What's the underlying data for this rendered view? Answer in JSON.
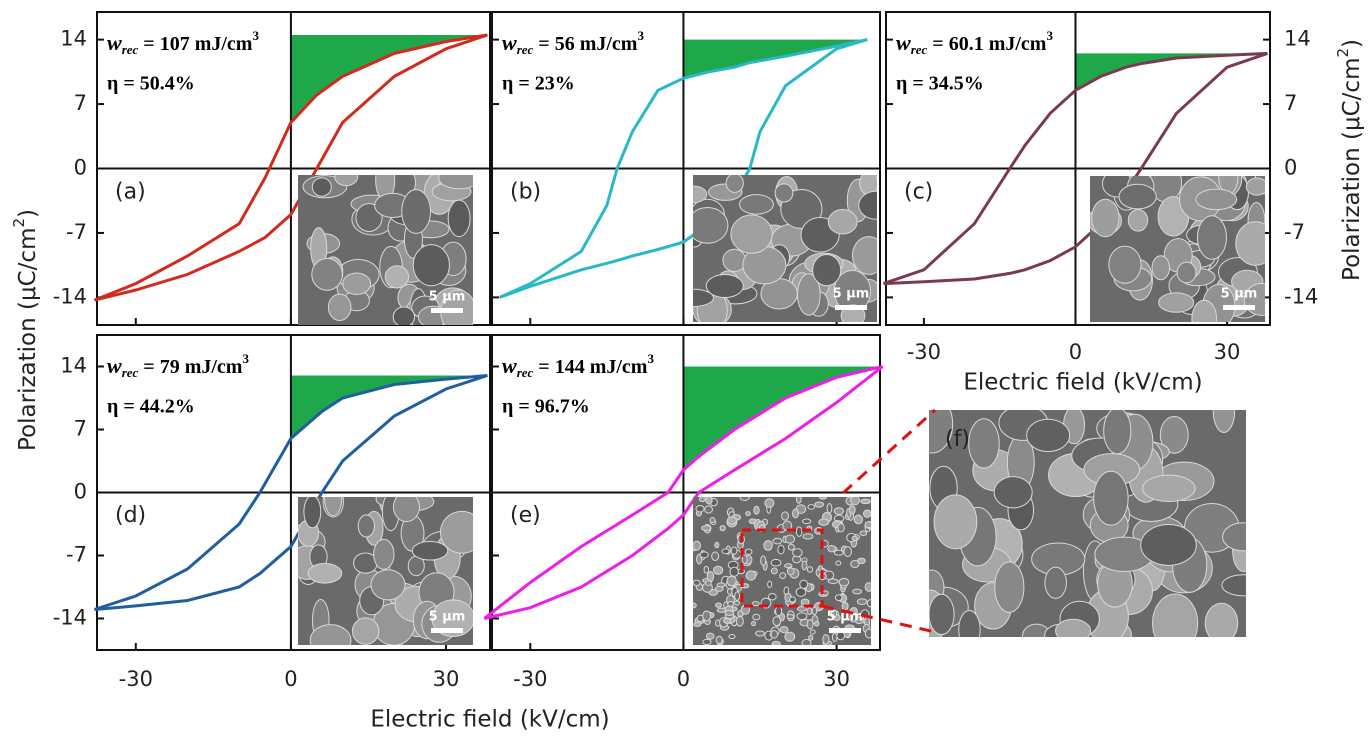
{
  "xlabel": "Electric field (kV/cm)",
  "ylabel": {
    "text": "Polarization (μC/cm",
    "superscript": "2",
    "close": ")"
  },
  "inset_label": "(f)",
  "chart_data": [
    {
      "type": "line",
      "label": "(a)",
      "annotation": {
        "symbol": "w",
        "subscript": "rec",
        "text": " = 107 mJ/cm",
        "superscript": "3"
      },
      "efficiency": "η = 50.4%",
      "scale_bar": "5 μm",
      "x": [
        -38,
        -30,
        -20,
        -10,
        -5,
        0,
        5,
        10,
        20,
        30,
        38
      ],
      "series": [
        {
          "color": "#d42a1e",
          "values": [
            -14.3,
            -12.5,
            -9.5,
            -6,
            -1,
            5,
            8,
            10,
            12.5,
            13.8,
            14.5
          ]
        },
        {
          "color": "#d42a1e",
          "values": [
            -14.3,
            -13.2,
            -11.5,
            -9,
            -7.5,
            -5,
            0,
            5,
            10,
            13,
            14.5
          ]
        }
      ],
      "fill_color": "#1fa84a",
      "xlim": [
        -37.5,
        38.5
      ],
      "ylim": [
        -17,
        17
      ],
      "xticks": [
        -30,
        0,
        30
      ],
      "yticks": [
        -14,
        -7,
        0,
        7,
        14
      ]
    },
    {
      "type": "line",
      "label": "(b)",
      "annotation": {
        "symbol": "w",
        "subscript": "rec",
        "text": " = 56 mJ/cm",
        "superscript": "3"
      },
      "efficiency": "η = 23%",
      "scale_bar": "5 μm",
      "x": [
        -36,
        -30,
        -20,
        -15,
        -13,
        -10,
        -5,
        0,
        5,
        10,
        13,
        15,
        20,
        30,
        36
      ],
      "series": [
        {
          "color": "#29b8c8",
          "values": [
            -14,
            -12.5,
            -9,
            -4,
            0,
            4,
            8.5,
            9.8,
            10.5,
            11,
            11.5,
            11.7,
            12.2,
            13.3,
            14
          ]
        },
        {
          "color": "#29b8c8",
          "values": [
            -14,
            -12.8,
            -11,
            -10.3,
            -10,
            -9.5,
            -8.8,
            -8,
            -6,
            -3,
            0,
            4,
            9,
            13,
            14
          ]
        }
      ],
      "fill_color": "#1fa84a",
      "xlim": [
        -37.5,
        38.5
      ],
      "ylim": [
        -17,
        17
      ],
      "xticks": [
        -30,
        0,
        30
      ],
      "yticks": [
        -14,
        -7,
        0,
        7,
        14
      ]
    },
    {
      "type": "line",
      "label": "(c)",
      "annotation": {
        "symbol": "w",
        "subscript": "rec",
        "text": " = 60.1 mJ/cm",
        "superscript": "3"
      },
      "efficiency": "η = 34.5%",
      "scale_bar": "5 μm",
      "xlabel": "Electric field (kV/cm)",
      "ylabel": {
        "text": "Polarization (μC/cm",
        "superscript": "2",
        "close": ")"
      },
      "x": [
        -38,
        -30,
        -20,
        -13,
        -10,
        -5,
        0,
        5,
        10,
        13,
        20,
        30,
        38
      ],
      "series": [
        {
          "color": "#7b3a4e",
          "values": [
            -12.5,
            -11,
            -6,
            0,
            2.5,
            6,
            8.5,
            10,
            11,
            11.4,
            12,
            12.3,
            12.5
          ]
        },
        {
          "color": "#7b3a4e",
          "values": [
            -12.5,
            -12.3,
            -12,
            -11.4,
            -11,
            -10,
            -8.5,
            -6,
            -2.5,
            0,
            6,
            11,
            12.5
          ]
        }
      ],
      "fill_color": "#1fa84a",
      "xlim": [
        -37.5,
        38.5
      ],
      "ylim": [
        -17,
        17
      ],
      "xticks": [
        -30,
        0,
        30
      ],
      "yticks": [
        -14,
        -7,
        0,
        7,
        14
      ]
    },
    {
      "type": "line",
      "label": "(d)",
      "annotation": {
        "symbol": "w",
        "subscript": "rec",
        "text": " = 79 mJ/cm",
        "superscript": "3"
      },
      "efficiency": "η = 44.2%",
      "scale_bar": "5 μm",
      "x": [
        -38,
        -30,
        -20,
        -10,
        -6,
        0,
        6,
        10,
        20,
        30,
        38
      ],
      "series": [
        {
          "color": "#1f5fa0",
          "values": [
            -13,
            -11.5,
            -8.5,
            -3.5,
            0,
            6,
            9,
            10.5,
            12,
            12.6,
            13
          ]
        },
        {
          "color": "#1f5fa0",
          "values": [
            -13,
            -12.6,
            -12,
            -10.5,
            -9,
            -6,
            0,
            3.5,
            8.5,
            11.5,
            13
          ]
        }
      ],
      "fill_color": "#1fa84a",
      "xlim": [
        -37.5,
        38.5
      ],
      "ylim": [
        -17.5,
        17.5
      ],
      "xticks": [
        -30,
        0,
        30
      ],
      "yticks": [
        -14,
        -7,
        0,
        7,
        14
      ]
    },
    {
      "type": "line",
      "label": "(e)",
      "annotation": {
        "symbol": "w",
        "subscript": "rec",
        "text": " = 144 mJ/cm",
        "superscript": "3"
      },
      "efficiency": "η = 96.7%",
      "scale_bar": "5 μm",
      "x": [
        -39,
        -30,
        -20,
        -10,
        -3,
        0,
        3,
        10,
        20,
        30,
        39
      ],
      "series": [
        {
          "color": "#ee1ee8",
          "values": [
            -14,
            -10,
            -6,
            -2.5,
            0,
            2.5,
            4,
            7,
            10.5,
            12.8,
            14
          ]
        },
        {
          "color": "#ee1ee8",
          "values": [
            -14,
            -12.8,
            -10.5,
            -7,
            -4,
            -2.5,
            0,
            2.5,
            6,
            10,
            14
          ]
        }
      ],
      "fill_color": "#1fa84a",
      "xlim": [
        -37.5,
        38.5
      ],
      "ylim": [
        -17.5,
        17.5
      ],
      "xticks": [
        -30,
        0,
        30
      ],
      "yticks": [
        -14,
        -7,
        0,
        7,
        14
      ]
    }
  ]
}
